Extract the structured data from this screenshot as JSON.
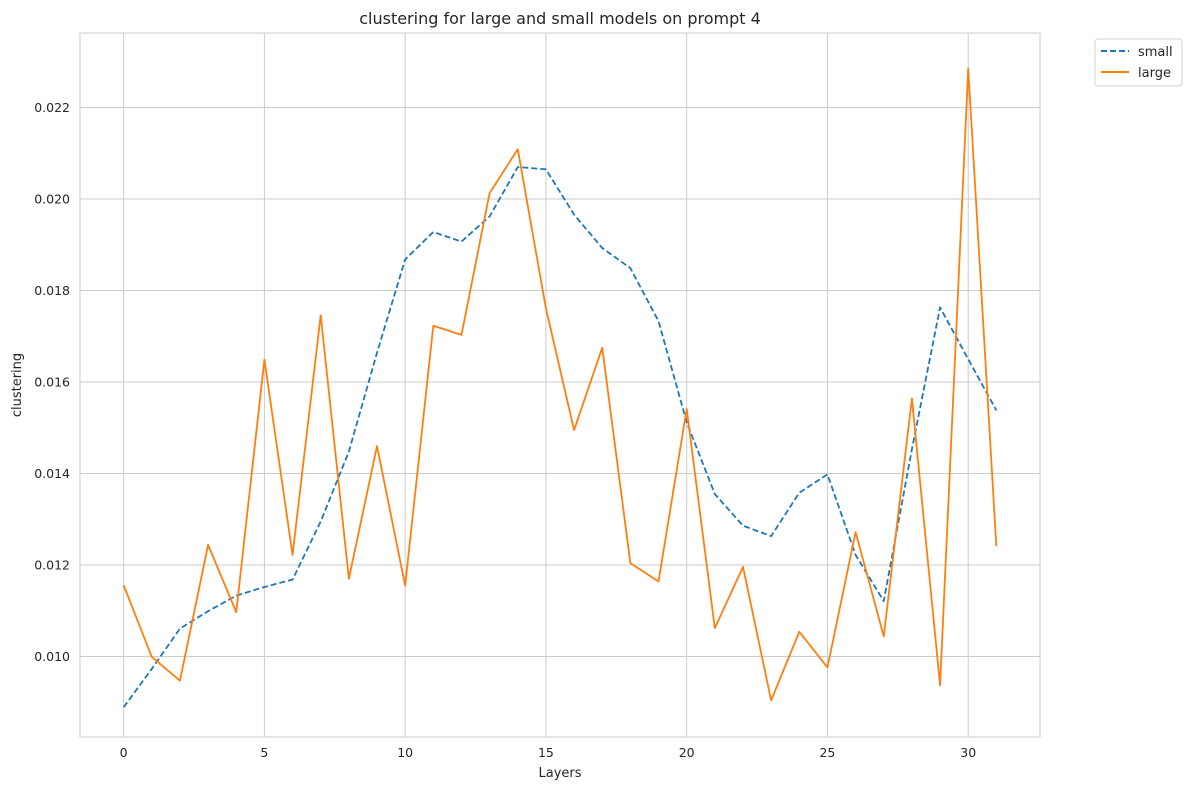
{
  "chart_data": {
    "type": "line",
    "title": "clustering for large and small models on prompt 4",
    "xlabel": "Layers",
    "ylabel": "clustering",
    "xlim": [
      -1.55,
      32.55
    ],
    "ylim": [
      0.00824,
      0.02363
    ],
    "xticks": [
      0,
      5,
      10,
      15,
      20,
      25,
      30
    ],
    "xtick_labels": [
      "0",
      "5",
      "10",
      "15",
      "20",
      "25",
      "30"
    ],
    "yticks": [
      0.01,
      0.012,
      0.014,
      0.016,
      0.018,
      0.02,
      0.022
    ],
    "ytick_labels": [
      "0.010",
      "0.012",
      "0.014",
      "0.016",
      "0.018",
      "0.020",
      "0.022"
    ],
    "grid": true,
    "legend_position": "outside-top-right",
    "x": [
      0,
      1,
      2,
      3,
      4,
      5,
      6,
      7,
      8,
      9,
      10,
      11,
      12,
      13,
      14,
      15,
      16,
      17,
      18,
      19,
      20,
      21,
      22,
      23,
      24,
      25,
      26,
      27,
      28,
      29,
      30,
      31
    ],
    "series": [
      {
        "name": "small",
        "color": "#1f77b4",
        "dash": "dashed",
        "values": [
          0.00889,
          0.00973,
          0.01061,
          0.01099,
          0.01133,
          0.01152,
          0.01168,
          0.01295,
          0.01448,
          0.01664,
          0.01868,
          0.01928,
          0.01907,
          0.01962,
          0.0207,
          0.02065,
          0.01966,
          0.01893,
          0.01849,
          0.01733,
          0.01512,
          0.01355,
          0.01286,
          0.01263,
          0.01358,
          0.01398,
          0.01222,
          0.01121,
          0.01453,
          0.01763,
          0.0165,
          0.01538
        ]
      },
      {
        "name": "large",
        "color": "#ff7f0e",
        "dash": "solid",
        "values": [
          0.01156,
          0.00999,
          0.00947,
          0.01244,
          0.01097,
          0.01649,
          0.01222,
          0.01746,
          0.0117,
          0.0146,
          0.01155,
          0.01723,
          0.01703,
          0.02013,
          0.02109,
          0.01761,
          0.01495,
          0.01675,
          0.01204,
          0.01164,
          0.01541,
          0.01062,
          0.01196,
          0.00904,
          0.01054,
          0.00976,
          0.01272,
          0.01044,
          0.01564,
          0.00937,
          0.02285,
          0.01241
        ]
      }
    ]
  }
}
